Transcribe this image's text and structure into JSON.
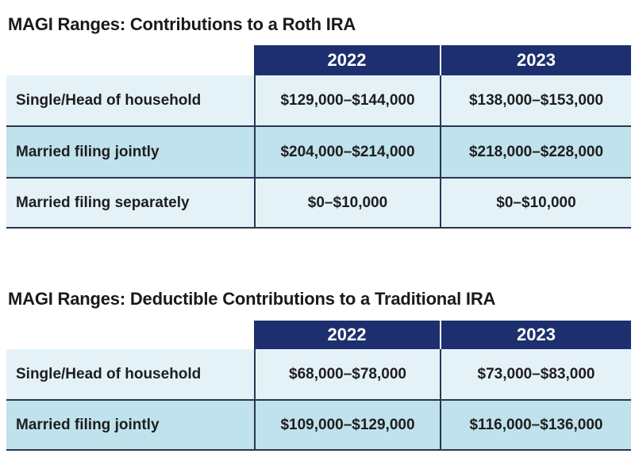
{
  "tables": [
    {
      "title": "MAGI Ranges: Contributions to a Roth IRA",
      "columns": [
        "2022",
        "2023"
      ],
      "rows": [
        {
          "label": "Single/Head of household",
          "cells": [
            "$129,000–$144,000",
            "$138,000–$153,000"
          ]
        },
        {
          "label": "Married filing jointly",
          "cells": [
            "$204,000–$214,000",
            "$218,000–$228,000"
          ]
        },
        {
          "label": "Married filing separately",
          "cells": [
            "$0–$10,000",
            "$0–$10,000"
          ]
        }
      ]
    },
    {
      "title": "MAGI Ranges: Deductible Contributions to a Traditional IRA",
      "columns": [
        "2022",
        "2023"
      ],
      "rows": [
        {
          "label": "Single/Head of household",
          "cells": [
            "$68,000–$78,000",
            "$73,000–$83,000"
          ]
        },
        {
          "label": "Married filing jointly",
          "cells": [
            "$109,000–$129,000",
            "$116,000–$136,000"
          ]
        }
      ]
    }
  ]
}
